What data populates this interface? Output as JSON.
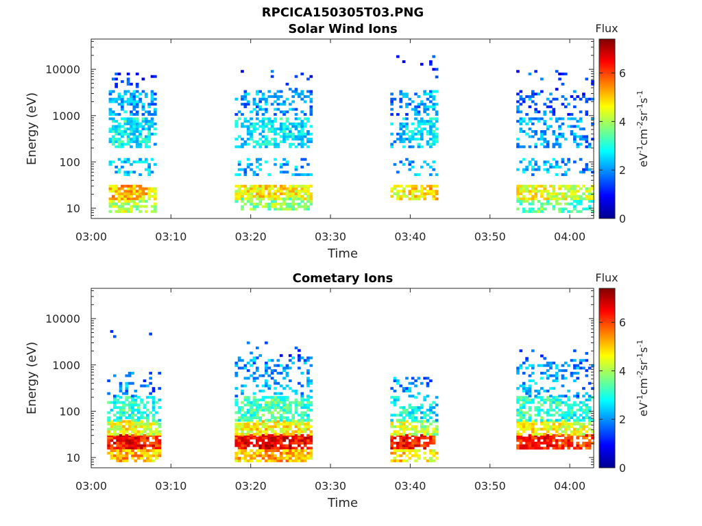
{
  "figure": {
    "filename_title": "RPCICA150305T03.PNG"
  },
  "colorbar": {
    "label": "Flux",
    "unit_base": "eV",
    "unit_sup1": "-1",
    "unit_mid1": "cm",
    "unit_sup2": "-2",
    "unit_mid2": "sr",
    "unit_sup3": "-1",
    "unit_mid3": "s",
    "unit_sup4": "-1",
    "range": [
      0,
      7.4
    ],
    "ticks": [
      "0",
      "2",
      "4",
      "6"
    ],
    "colormap": "jet"
  },
  "chart_data": [
    {
      "type": "heatmap",
      "title": "Solar Wind Ions",
      "xlabel": "Time",
      "ylabel": "Energy (eV)",
      "yscale": "log",
      "x_tick_labels": [
        "03:00",
        "03:10",
        "03:20",
        "03:30",
        "03:40",
        "03:50",
        "04:00"
      ],
      "y_tick_labels": [
        "10",
        "100",
        "1000",
        "10000"
      ],
      "xlim_minutes_after_0300": [
        0,
        63
      ],
      "ylim": [
        6,
        45000
      ],
      "grid": false,
      "bursts": [
        {
          "start": 2.2,
          "end": 8.0,
          "peak_time": 4.0,
          "bands": [
            {
              "emin": 15,
              "emax": 32,
              "level": 5.2,
              "density": 0.95
            },
            {
              "emin": 8,
              "emax": 15,
              "level": 4.2,
              "density": 0.7
            },
            {
              "emin": 50,
              "emax": 110,
              "level": 2.6,
              "density": 0.4
            },
            {
              "emin": 200,
              "emax": 900,
              "level": 2.9,
              "density": 0.75
            },
            {
              "emin": 1000,
              "emax": 3500,
              "level": 2.3,
              "density": 0.55
            },
            {
              "emin": 3500,
              "emax": 9000,
              "level": 1.4,
              "density": 0.1
            }
          ]
        },
        {
          "start": 18.0,
          "end": 27.5,
          "peak_time": 22.5,
          "bands": [
            {
              "emin": 15,
              "emax": 32,
              "level": 4.8,
              "density": 0.9
            },
            {
              "emin": 9,
              "emax": 15,
              "level": 3.8,
              "density": 0.6
            },
            {
              "emin": 50,
              "emax": 110,
              "level": 2.4,
              "density": 0.35
            },
            {
              "emin": 200,
              "emax": 900,
              "level": 2.8,
              "density": 0.6
            },
            {
              "emin": 1000,
              "emax": 3500,
              "level": 2.2,
              "density": 0.45
            },
            {
              "emin": 3500,
              "emax": 9000,
              "level": 1.4,
              "density": 0.1
            }
          ]
        },
        {
          "start": 37.5,
          "end": 43.5,
          "peak_time": 42.5,
          "bands": [
            {
              "emin": 15,
              "emax": 32,
              "level": 5.0,
              "density": 0.85
            },
            {
              "emin": 50,
              "emax": 110,
              "level": 2.4,
              "density": 0.25
            },
            {
              "emin": 200,
              "emax": 900,
              "level": 2.7,
              "density": 0.55
            },
            {
              "emin": 1000,
              "emax": 3500,
              "level": 2.2,
              "density": 0.45
            },
            {
              "emin": 5000,
              "emax": 20000,
              "level": 1.4,
              "density": 0.08
            }
          ]
        },
        {
          "start": 53.3,
          "end": 62.8,
          "peak_time": 55.5,
          "bands": [
            {
              "emin": 15,
              "emax": 32,
              "level": 4.6,
              "density": 0.85
            },
            {
              "emin": 8,
              "emax": 15,
              "level": 3.6,
              "density": 0.55
            },
            {
              "emin": 50,
              "emax": 110,
              "level": 2.3,
              "density": 0.3
            },
            {
              "emin": 200,
              "emax": 900,
              "level": 2.3,
              "density": 0.4
            },
            {
              "emin": 1000,
              "emax": 3500,
              "level": 1.8,
              "density": 0.3
            },
            {
              "emin": 3500,
              "emax": 9000,
              "level": 1.4,
              "density": 0.1
            }
          ]
        }
      ]
    },
    {
      "type": "heatmap",
      "title": "Cometary Ions",
      "xlabel": "Time",
      "ylabel": "Energy (eV)",
      "yscale": "log",
      "x_tick_labels": [
        "03:00",
        "03:10",
        "03:20",
        "03:30",
        "03:40",
        "03:50",
        "04:00"
      ],
      "y_tick_labels": [
        "10",
        "100",
        "1000",
        "10000"
      ],
      "xlim_minutes_after_0300": [
        0,
        63
      ],
      "ylim": [
        6,
        45000
      ],
      "grid": false,
      "bursts": [
        {
          "start": 2.0,
          "end": 8.5,
          "peak_time": 4.0,
          "bands": [
            {
              "emin": 15,
              "emax": 30,
              "level": 6.5,
              "density": 0.95
            },
            {
              "emin": 8,
              "emax": 15,
              "level": 5.3,
              "density": 0.8
            },
            {
              "emin": 30,
              "emax": 60,
              "level": 4.6,
              "density": 0.85
            },
            {
              "emin": 60,
              "emax": 200,
              "level": 3.2,
              "density": 0.65
            },
            {
              "emin": 200,
              "emax": 700,
              "level": 2.1,
              "density": 0.25
            },
            {
              "emin": 3000,
              "emax": 5000,
              "level": 1.4,
              "density": 0.05
            }
          ]
        },
        {
          "start": 18.0,
          "end": 27.5,
          "peak_time": 22.5,
          "bands": [
            {
              "emin": 15,
              "emax": 30,
              "level": 6.7,
              "density": 0.95
            },
            {
              "emin": 8,
              "emax": 15,
              "level": 5.3,
              "density": 0.8
            },
            {
              "emin": 30,
              "emax": 60,
              "level": 4.8,
              "density": 0.85
            },
            {
              "emin": 60,
              "emax": 200,
              "level": 3.4,
              "density": 0.7
            },
            {
              "emin": 200,
              "emax": 1500,
              "level": 2.2,
              "density": 0.35
            },
            {
              "emin": 1500,
              "emax": 3500,
              "level": 1.5,
              "density": 0.08
            }
          ]
        },
        {
          "start": 37.5,
          "end": 43.5,
          "peak_time": 38.5,
          "bands": [
            {
              "emin": 15,
              "emax": 30,
              "level": 6.5,
              "density": 0.9
            },
            {
              "emin": 8,
              "emax": 15,
              "level": 5.0,
              "density": 0.65
            },
            {
              "emin": 30,
              "emax": 60,
              "level": 4.4,
              "density": 0.7
            },
            {
              "emin": 60,
              "emax": 200,
              "level": 3.0,
              "density": 0.5
            },
            {
              "emin": 200,
              "emax": 500,
              "level": 2.1,
              "density": 0.25
            }
          ]
        },
        {
          "start": 53.3,
          "end": 62.8,
          "peak_time": 55.5,
          "bands": [
            {
              "emin": 15,
              "emax": 30,
              "level": 6.4,
              "density": 0.9
            },
            {
              "emin": 30,
              "emax": 60,
              "level": 4.7,
              "density": 0.8
            },
            {
              "emin": 60,
              "emax": 200,
              "level": 3.3,
              "density": 0.65
            },
            {
              "emin": 200,
              "emax": 1300,
              "level": 2.3,
              "density": 0.35
            },
            {
              "emin": 1300,
              "emax": 2000,
              "level": 1.5,
              "density": 0.05
            }
          ]
        }
      ]
    }
  ]
}
